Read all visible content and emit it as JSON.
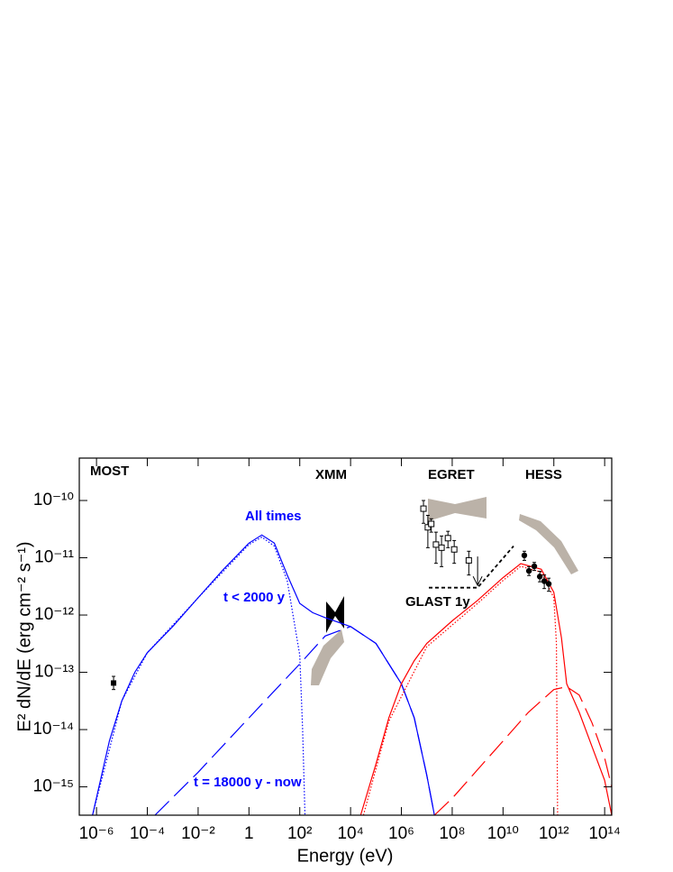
{
  "chart_data": {
    "type": "line",
    "xlabel": "Energy (eV)",
    "ylabel": "E² dN/dE (erg cm⁻² s⁻¹)",
    "xscale": "log",
    "yscale": "log",
    "xlim": [
      2.1e-07,
      190000000000000.0
    ],
    "ylim": [
      3.2e-16,
      5.5e-10
    ],
    "xticks": [
      {
        "value": 1e-06,
        "label": "10⁻⁶"
      },
      {
        "value": 0.0001,
        "label": "10⁻⁴"
      },
      {
        "value": 0.01,
        "label": "10⁻²"
      },
      1,
      {
        "value": 100,
        "label": "10²"
      },
      {
        "value": 10000.0,
        "label": "10⁴"
      },
      {
        "value": 1000000.0,
        "label": "10⁶"
      },
      {
        "value": 100000000.0,
        "label": "10⁸"
      },
      {
        "value": 10000000000.0,
        "label": "10¹⁰"
      },
      {
        "value": 1000000000000.0,
        "label": "10¹²"
      },
      {
        "value": 100000000000000.0,
        "label": "10¹⁴"
      }
    ],
    "yticks": [
      {
        "value": 1e-15,
        "label": "10⁻¹⁵"
      },
      {
        "value": 1e-14,
        "label": "10⁻¹⁴"
      },
      {
        "value": 1e-13,
        "label": "10⁻¹³"
      },
      {
        "value": 1e-12,
        "label": "10⁻¹²"
      },
      {
        "value": 1e-11,
        "label": "10⁻¹¹"
      },
      {
        "value": 1e-10,
        "label": "10⁻¹⁰"
      }
    ],
    "annotations": [
      {
        "text": "MOST",
        "color": "#000000"
      },
      {
        "text": "XMM",
        "color": "#000000"
      },
      {
        "text": "EGRET",
        "color": "#000000"
      },
      {
        "text": "HESS",
        "color": "#000000"
      },
      {
        "text": "All times",
        "color": "#0000ff"
      },
      {
        "text": "t < 2000 y",
        "color": "#0000ff"
      },
      {
        "text": "t = 18000 y - now",
        "color": "#0000ff"
      },
      {
        "text": "GLAST 1y",
        "color": "#000000"
      }
    ],
    "series": [
      {
        "color": "#0000ff",
        "style": "solid",
        "x": [
          7e-07,
          3.2e-06,
          1e-05,
          3.2e-05,
          0.0001,
          0.001,
          0.01,
          0.1,
          1,
          3.2,
          10,
          32,
          100,
          320,
          1000,
          10000.0,
          100000.0,
          1000000.0,
          3200000.0,
          10000000.0,
          20000000.0
        ],
        "values": [
          3.2e-16,
          6.3e-15,
          3.2e-14,
          1e-13,
          2.2e-13,
          6.3e-13,
          2e-12,
          6.3e-12,
          1.8e-11,
          2.5e-11,
          1.8e-11,
          5e-12,
          1.6e-12,
          1.1e-12,
          9e-13,
          6.3e-13,
          3.2e-13,
          6.3e-14,
          1.6e-14,
          1.6e-15,
          3.2e-16
        ]
      },
      {
        "color": "#0000ff",
        "style": "dotted",
        "x": [
          7e-07,
          1e-05,
          0.0001,
          0.01,
          1,
          3.2,
          10,
          32,
          100,
          130,
          160
        ],
        "values": [
          3.2e-16,
          3.2e-14,
          2.2e-13,
          2e-12,
          1.7e-11,
          2.3e-11,
          1.6e-11,
          4e-12,
          2e-13,
          1e-14,
          3.2e-16
        ]
      },
      {
        "color": "#0000ff",
        "style": "dashed",
        "x": [
          0.0002,
          0.01,
          1,
          100,
          1000,
          10000.0,
          100000.0,
          1000000.0,
          3200000.0,
          10000000.0,
          20000000.0
        ],
        "values": [
          3.2e-16,
          1.8e-15,
          1.6e-14,
          1.4e-13,
          4.3e-13,
          6.3e-13,
          3.2e-13,
          6.3e-14,
          1.6e-14,
          1.6e-15,
          3.2e-16
        ]
      },
      {
        "color": "#ff0000",
        "style": "solid",
        "x": [
          25000.0,
          100000.0,
          320000.0,
          1000000.0,
          3200000.0,
          10000000.0,
          100000000.0,
          1000000000.0,
          10000000000.0,
          50000000000.0,
          320000000000.0,
          1000000000000.0,
          2000000000000.0,
          3200000000000.0,
          10000000000000.0,
          32000000000000.0,
          100000000000000.0,
          190000000000000.0
        ],
        "values": [
          3.2e-16,
          2.5e-15,
          1.6e-14,
          6.3e-14,
          1.6e-13,
          3.2e-13,
          7.9e-13,
          1.8e-12,
          4.5e-12,
          7.9e-12,
          6.3e-12,
          2.5e-12,
          4e-13,
          6.3e-14,
          2e-14,
          5e-15,
          1.3e-15,
          3.2e-16
        ]
      },
      {
        "color": "#ff0000",
        "style": "dotted",
        "x": [
          32000.0,
          320000.0,
          10000000.0,
          1000000000.0,
          10000000000.0,
          50000000000.0,
          320000000000.0,
          1000000000000.0,
          1260000000000.0,
          1400000000000.0
        ],
        "values": [
          3.2e-16,
          1.4e-14,
          2.8e-13,
          1.6e-12,
          4e-12,
          7.1e-12,
          5.6e-12,
          2e-12,
          3.2e-13,
          3.2e-16
        ]
      },
      {
        "color": "#ff0000",
        "style": "dashed",
        "x": [
          20000000.0,
          100000000.0,
          1000000000.0,
          10000000000.0,
          100000000000.0,
          1000000000000.0,
          3200000000000.0,
          10000000000000.0,
          32000000000000.0,
          100000000000000.0,
          190000000000000.0
        ],
        "values": [
          3.2e-16,
          6.3e-16,
          2e-15,
          6.3e-15,
          2e-14,
          5e-14,
          5.6e-14,
          4e-14,
          1.3e-14,
          3.2e-15,
          1e-15
        ]
      },
      {
        "color": "#000000",
        "style": "short-dash",
        "x": [
          12000000.0,
          1000000000.0,
          26000000000.0
        ],
        "values": [
          3e-12,
          3e-12,
          1.6e-11
        ]
      },
      {
        "color": "#000000",
        "marker": "filled-square",
        "x": [
          4.7e-06
        ],
        "values": [
          6.5e-14
        ],
        "y_low": [
          5e-14
        ],
        "y_high": [
          8.5e-14
        ]
      },
      {
        "color": "#000000",
        "marker": "open-square",
        "x": [
          7400000.0,
          11000000.0,
          15000000.0,
          23000000.0,
          38000000.0,
          68000000.0,
          120000000.0,
          450000000.0
        ],
        "values": [
          7.2e-11,
          3.4e-11,
          3.9e-11,
          1.7e-11,
          1.5e-11,
          2.2e-11,
          1.4e-11,
          9e-12
        ],
        "y_low": [
          4e-11,
          1.5e-11,
          2.8e-11,
          8e-12,
          7e-12,
          1.5e-11,
          8e-12,
          5e-12
        ],
        "y_high": [
          1e-10,
          5.5e-11,
          4.8e-11,
          2.8e-11,
          2.4e-11,
          2.9e-11,
          2e-11,
          1.3e-11
        ]
      },
      {
        "color": "#000000",
        "marker": "upper-limit",
        "x": [
          1000000000.0
        ],
        "values": [
          1.05e-11
        ]
      },
      {
        "color": "#000000",
        "marker": "filled-circle",
        "x": [
          69000000000.0,
          105000000000.0,
          170000000000.0,
          280000000000.0,
          420000000000.0,
          630000000000.0
        ],
        "values": [
          1.1e-11,
          5.9e-12,
          7.1e-12,
          4.7e-12,
          3.9e-12,
          3.5e-12
        ],
        "y_low": [
          9e-12,
          4.9e-12,
          6e-12,
          3.8e-12,
          2.9e-12,
          2.6e-12
        ],
        "y_high": [
          1.3e-11,
          7e-12,
          8.3e-12,
          5.8e-12,
          5e-12,
          4.4e-12
        ]
      }
    ]
  }
}
